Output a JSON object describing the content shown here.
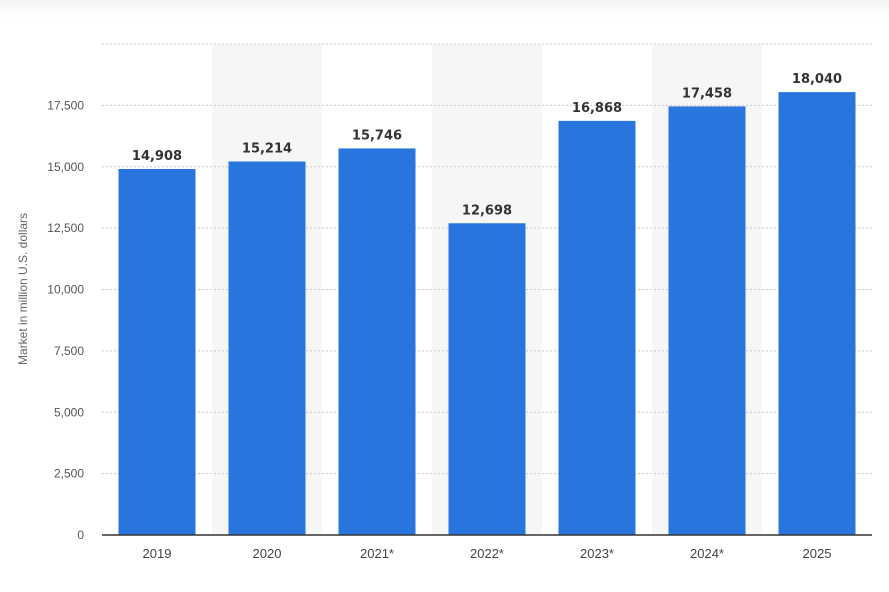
{
  "chart_data": {
    "type": "bar",
    "categories": [
      "2019",
      "2020",
      "2021*",
      "2022*",
      "2023*",
      "2024*",
      "2025"
    ],
    "series": [
      {
        "values": [
          14908,
          15214,
          15746,
          12698,
          16868,
          17458,
          18040
        ]
      }
    ],
    "data_labels": [
      "14,908",
      "15,214",
      "15,746",
      "12,698",
      "16,868",
      "17,458",
      "18,040"
    ],
    "yticks": [
      0,
      2500,
      5000,
      7500,
      10000,
      12500,
      15000,
      17500
    ],
    "ytick_labels": [
      "0",
      "2,500",
      "5,000",
      "7,500",
      "10,000",
      "12,500",
      "15,000",
      "17,500"
    ],
    "ylim": [
      0,
      20000
    ],
    "ylabel": "Market in million U.S. dollars",
    "xlabel": "",
    "title": "",
    "grid": true,
    "legend": "none",
    "colors": {
      "bar": "#2876dd",
      "band": "#f6f6f6",
      "grid": "#c8c8c8",
      "axis": "#333333"
    }
  }
}
